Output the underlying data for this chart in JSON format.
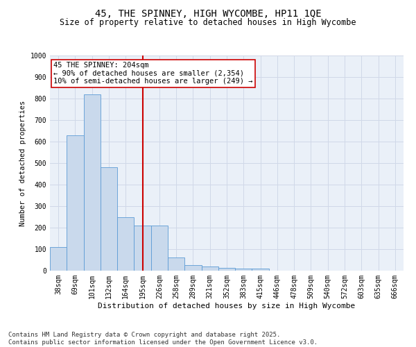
{
  "title": "45, THE SPINNEY, HIGH WYCOMBE, HP11 1QE",
  "subtitle": "Size of property relative to detached houses in High Wycombe",
  "xlabel": "Distribution of detached houses by size in High Wycombe",
  "ylabel": "Number of detached properties",
  "categories": [
    "38sqm",
    "69sqm",
    "101sqm",
    "132sqm",
    "164sqm",
    "195sqm",
    "226sqm",
    "258sqm",
    "289sqm",
    "321sqm",
    "352sqm",
    "383sqm",
    "415sqm",
    "446sqm",
    "478sqm",
    "509sqm",
    "540sqm",
    "572sqm",
    "603sqm",
    "635sqm",
    "666sqm"
  ],
  "values": [
    110,
    630,
    820,
    480,
    250,
    210,
    210,
    60,
    25,
    18,
    12,
    10,
    10,
    0,
    0,
    0,
    0,
    0,
    0,
    0,
    0
  ],
  "bar_color": "#c9d9ec",
  "bar_edge_color": "#5b9bd5",
  "grid_color": "#d0d8e8",
  "background_color": "#eaf0f8",
  "vline_x": 5.0,
  "vline_color": "#cc0000",
  "annotation_text": "45 THE SPINNEY: 204sqm\n← 90% of detached houses are smaller (2,354)\n10% of semi-detached houses are larger (249) →",
  "annotation_box_color": "#ffffff",
  "annotation_box_edge": "#cc0000",
  "ylim": [
    0,
    1000
  ],
  "yticks": [
    0,
    100,
    200,
    300,
    400,
    500,
    600,
    700,
    800,
    900,
    1000
  ],
  "footnote": "Contains HM Land Registry data © Crown copyright and database right 2025.\nContains public sector information licensed under the Open Government Licence v3.0.",
  "title_fontsize": 10,
  "subtitle_fontsize": 8.5,
  "xlabel_fontsize": 8,
  "ylabel_fontsize": 7.5,
  "tick_fontsize": 7,
  "annotation_fontsize": 7.5,
  "footnote_fontsize": 6.5
}
